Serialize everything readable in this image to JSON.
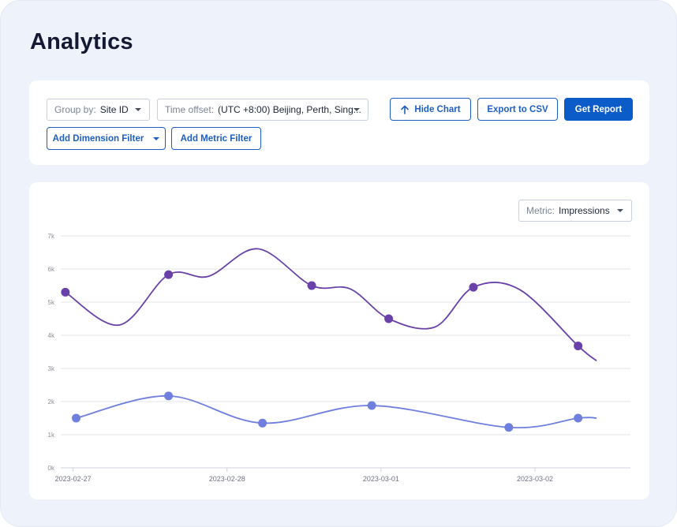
{
  "page": {
    "title": "Analytics"
  },
  "controls": {
    "group_by": {
      "label": "Group by:",
      "value": "Site ID"
    },
    "time_offset": {
      "label": "Time offset:",
      "value": "(UTC +8:00) Beijing, Perth, Sing..."
    },
    "hide_chart": "Hide Chart",
    "export_csv": "Export to CSV",
    "get_report": "Get Report",
    "add_dimension_filter": "Add Dimension Filter",
    "add_metric_filter": "Add Metric Filter"
  },
  "metric": {
    "label": "Metric:",
    "value": "Impressions"
  },
  "icons": {
    "hide_chart": "arrow-up-icon",
    "dropdown": "chevron-down-icon"
  },
  "colors": {
    "accent": "#0b5cc9",
    "series_1": "#6a41a8",
    "series_2": "#6f7fdd"
  },
  "chart_data": {
    "type": "line",
    "title": "",
    "xlabel": "",
    "ylabel": "",
    "ylim": [
      0,
      7000
    ],
    "y_ticks": [
      "0k",
      "1k",
      "2k",
      "3k",
      "4k",
      "5k",
      "6k",
      "7k"
    ],
    "x_ticks": [
      {
        "label": "2023-02-27",
        "pos": 0
      },
      {
        "label": "2023-02-28",
        "pos": 1
      },
      {
        "label": "2023-03-01",
        "pos": 2
      },
      {
        "label": "2023-03-02",
        "pos": 3
      }
    ],
    "x_domain": [
      -0.08,
      3.62
    ],
    "grid": true,
    "legend": "none",
    "series": [
      {
        "color": "#6a41a8",
        "x": [
          -0.05,
          0.3,
          0.62,
          0.88,
          1.2,
          1.55,
          1.8,
          2.05,
          2.35,
          2.6,
          2.9,
          3.28,
          3.4
        ],
        "y": [
          5300,
          4310,
          5830,
          5780,
          6610,
          5500,
          5400,
          4500,
          4250,
          5450,
          5380,
          3680,
          3230
        ],
        "markers": [
          0,
          2,
          5,
          7,
          9,
          11
        ]
      },
      {
        "color": "#6f7fdd",
        "x": [
          0.02,
          0.62,
          1.23,
          1.94,
          2.83,
          3.28,
          3.4
        ],
        "y": [
          1500,
          2170,
          1350,
          1880,
          1220,
          1500,
          1500
        ],
        "markers": [
          0,
          1,
          2,
          3,
          4,
          5
        ]
      }
    ]
  }
}
